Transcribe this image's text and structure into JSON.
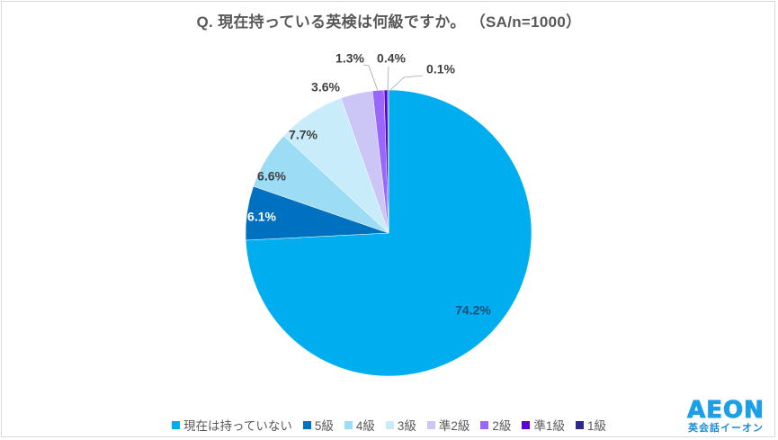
{
  "chart_data": {
    "type": "pie",
    "title": "Q. 現在持っている英検は何級ですか。 （SA/n=1000）",
    "categories": [
      "現在は持っていない",
      "5級",
      "4級",
      "3級",
      "準2級",
      "2級",
      "準1級",
      "1級"
    ],
    "values": [
      74.2,
      6.1,
      6.6,
      7.7,
      3.6,
      1.3,
      0.4,
      0.1
    ],
    "value_labels": [
      "74.2%",
      "6.1%",
      "6.6%",
      "7.7%",
      "3.6%",
      "1.3%",
      "0.4%",
      "0.1%"
    ],
    "colors": [
      "#00aeef",
      "#0070c0",
      "#9ddcf5",
      "#c9ecfb",
      "#ccc6f7",
      "#9966ff",
      "#5b00d6",
      "#2e2a8a"
    ],
    "label_colors": [
      "#1f4e79",
      "#ffffff",
      "#404040",
      "#404040",
      "#404040",
      "#404040",
      "#404040",
      "#404040"
    ],
    "start_angle": "12 o'clock",
    "direction": "clockwise",
    "legend_position": "bottom",
    "unit": "%",
    "n": 1000
  },
  "header": {
    "title": "Q. 現在持っている英検は何級ですか。 （SA/n=1000）"
  },
  "legend": {
    "items": [
      {
        "label": "現在は持っていない",
        "color": "#00aeef"
      },
      {
        "label": "5級",
        "color": "#0070c0"
      },
      {
        "label": "4級",
        "color": "#9ddcf5"
      },
      {
        "label": "3級",
        "color": "#c9ecfb"
      },
      {
        "label": "準2級",
        "color": "#ccc6f7"
      },
      {
        "label": "2級",
        "color": "#9966ff"
      },
      {
        "label": "準1級",
        "color": "#5b00d6"
      },
      {
        "label": "1級",
        "color": "#2e2a8a"
      }
    ]
  },
  "logo": {
    "main": "AEON",
    "sub": "英会話イーオン"
  }
}
